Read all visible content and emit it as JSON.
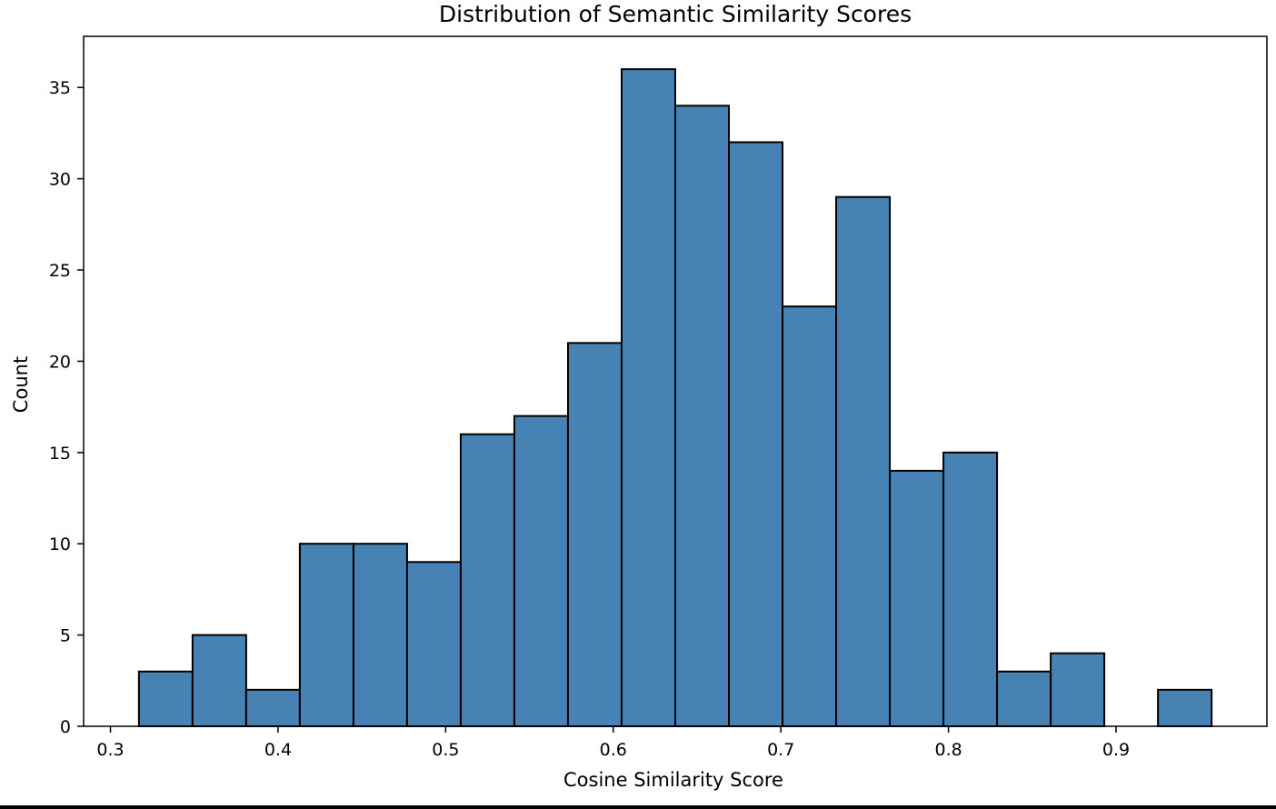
{
  "chart_data": {
    "type": "bar",
    "title": "Distribution of Semantic Similarity Scores",
    "xlabel": "Cosine Similarity Score",
    "ylabel": "Count",
    "xlim": [
      0.284,
      0.99
    ],
    "ylim": [
      0,
      37.8
    ],
    "bin_edges": [
      0.317,
      0.349,
      0.381,
      0.413,
      0.445,
      0.477,
      0.509,
      0.541,
      0.573,
      0.605,
      0.637,
      0.669,
      0.701,
      0.733,
      0.765,
      0.797,
      0.829,
      0.861,
      0.893,
      0.925,
      0.957
    ],
    "values": [
      3,
      5,
      2,
      10,
      10,
      9,
      16,
      17,
      21,
      36,
      34,
      32,
      23,
      29,
      14,
      15,
      3,
      4,
      0,
      2
    ],
    "xticks": [
      0.3,
      0.4,
      0.5,
      0.6,
      0.7,
      0.8,
      0.9
    ],
    "xtick_labels": [
      "0.3",
      "0.4",
      "0.5",
      "0.6",
      "0.7",
      "0.8",
      "0.9"
    ],
    "yticks": [
      0,
      5,
      10,
      15,
      20,
      25,
      30,
      35
    ],
    "ytick_labels": [
      "0",
      "5",
      "10",
      "15",
      "20",
      "25",
      "30",
      "35"
    ],
    "grid": false,
    "legend": false,
    "colors": {
      "bar_fill": "#4682b4",
      "bar_edge": "#000000",
      "background": "#ffffff"
    }
  }
}
